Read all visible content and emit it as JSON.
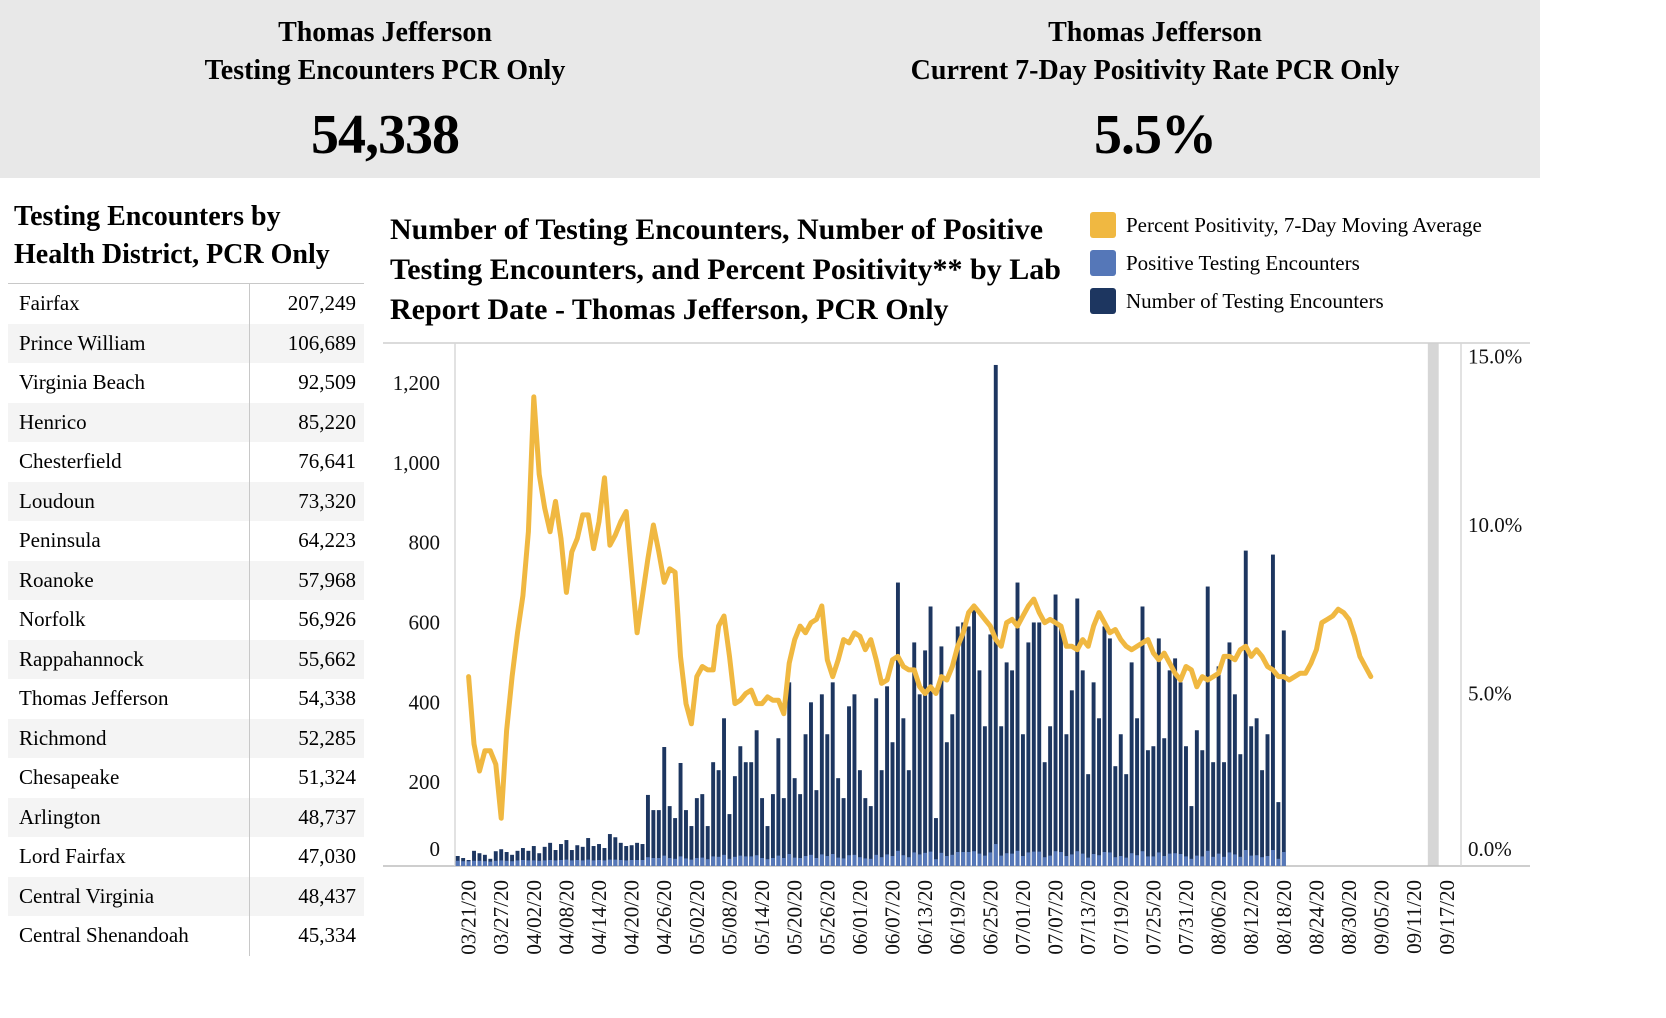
{
  "kpis": {
    "left": {
      "title_line1": "Thomas Jefferson",
      "title_line2": "Testing Encounters PCR Only",
      "value": "54,338"
    },
    "right": {
      "title_line1": "Thomas Jefferson",
      "title_line2": "Current 7-Day Positivity Rate PCR Only",
      "value": "5.5%"
    }
  },
  "district_table": {
    "heading_line1": "Testing Encounters by",
    "heading_line2": "Health District, PCR Only",
    "rows": [
      {
        "name": "Fairfax",
        "value": "207,249"
      },
      {
        "name": "Prince William",
        "value": "106,689"
      },
      {
        "name": "Virginia Beach",
        "value": "92,509"
      },
      {
        "name": "Henrico",
        "value": "85,220"
      },
      {
        "name": "Chesterfield",
        "value": "76,641"
      },
      {
        "name": "Loudoun",
        "value": "73,320"
      },
      {
        "name": "Peninsula",
        "value": "64,223"
      },
      {
        "name": "Roanoke",
        "value": "57,968"
      },
      {
        "name": "Norfolk",
        "value": "56,926"
      },
      {
        "name": "Rappahannock",
        "value": "55,662"
      },
      {
        "name": "Thomas Jefferson",
        "value": "54,338"
      },
      {
        "name": "Richmond",
        "value": "52,285"
      },
      {
        "name": "Chesapeake",
        "value": "51,324"
      },
      {
        "name": "Arlington",
        "value": "48,737"
      },
      {
        "name": "Lord Fairfax",
        "value": "47,030"
      },
      {
        "name": "Central Virginia",
        "value": "48,437"
      },
      {
        "name": "Central Shenandoah",
        "value": "45,334"
      }
    ]
  },
  "chart_title": {
    "line1": "Number of Testing Encounters, Number of Positive",
    "line2": "Testing Encounters, and Percent Positivity** by Lab",
    "line3": "Report Date - Thomas Jefferson, PCR Only"
  },
  "legend": [
    {
      "label": "Percent Positivity, 7-Day Moving Average",
      "color": "#f0b841"
    },
    {
      "label": "Positive Testing Encounters",
      "color": "#5577b8"
    },
    {
      "label": "Number of Testing Encounters",
      "color": "#1d3660"
    }
  ],
  "chart_data": {
    "type": "bar",
    "title": "Number of Testing Encounters, Number of Positive Testing Encounters, and Percent Positivity** by Lab Report Date - Thomas Jefferson, PCR Only",
    "x_start": "03/19/20",
    "x_end": "09/19/20",
    "x_ticks": [
      "03/21/20",
      "03/27/20",
      "04/02/20",
      "04/08/20",
      "04/14/20",
      "04/20/20",
      "04/26/20",
      "05/02/20",
      "05/08/20",
      "05/14/20",
      "05/20/20",
      "05/26/20",
      "06/01/20",
      "06/07/20",
      "06/13/20",
      "06/19/20",
      "06/25/20",
      "07/01/20",
      "07/07/20",
      "07/13/20",
      "07/19/20",
      "07/25/20",
      "07/31/20",
      "08/06/20",
      "08/12/20",
      "08/18/20",
      "08/24/20",
      "08/30/20",
      "09/05/20",
      "09/11/20",
      "09/17/20"
    ],
    "y_left_ticks": [
      0,
      200,
      400,
      600,
      800,
      1000,
      1200
    ],
    "y_left_tick_labels": [
      "0",
      "200",
      "400",
      "600",
      "800",
      "1,000",
      "1,200"
    ],
    "y_left_range": [
      0,
      1300
    ],
    "y_right_ticks": [
      0,
      5,
      10,
      15
    ],
    "y_right_tick_labels": [
      "0.0%",
      "5.0%",
      "10.0%",
      "15.0%"
    ],
    "y_right_range": [
      0,
      15.4
    ],
    "shaded_region": {
      "start": "09/14/20",
      "end": "09/16/20"
    },
    "series": [
      {
        "name": "Number of Testing Encounters",
        "color": "#1d3660",
        "values": [
          15,
          10,
          5,
          28,
          22,
          18,
          8,
          27,
          32,
          25,
          18,
          28,
          35,
          28,
          40,
          22,
          38,
          48,
          30,
          45,
          55,
          30,
          42,
          38,
          60,
          40,
          45,
          35,
          70,
          62,
          48,
          40,
          42,
          48,
          45,
          168,
          130,
          130,
          288,
          140,
          110,
          248,
          130,
          90,
          160,
          170,
          90,
          250,
          230,
          360,
          120,
          215,
          290,
          250,
          250,
          330,
          160,
          90,
          170,
          310,
          160,
          450,
          210,
          170,
          320,
          400,
          180,
          420,
          320,
          450,
          210,
          160,
          390,
          420,
          230,
          160,
          140,
          410,
          230,
          440,
          300,
          700,
          360,
          230,
          550,
          420,
          530,
          640,
          110,
          540,
          300,
          370,
          590,
          600,
          590,
          640,
          480,
          340,
          570,
          1245,
          340,
          500,
          480,
          700,
          320,
          550,
          600,
          600,
          250,
          340,
          670,
          590,
          320,
          430,
          660,
          480,
          220,
          450,
          360,
          590,
          560,
          240,
          320,
          220,
          500,
          360,
          640,
          280,
          290,
          560,
          310,
          480,
          510,
          450,
          290,
          140,
          330,
          280,
          690,
          250,
          490,
          250,
          550,
          420,
          270,
          780,
          340,
          360,
          230,
          320,
          770,
          150,
          580
        ],
        "start": "03/19/20"
      },
      {
        "name": "Positive Testing Encounters",
        "color": "#5577b8",
        "values": [
          3,
          2,
          2,
          3,
          3,
          2,
          1,
          3,
          4,
          3,
          2,
          4,
          5,
          4,
          4,
          3,
          4,
          5,
          4,
          5,
          6,
          4,
          5,
          4,
          6,
          4,
          5,
          4,
          6,
          6,
          5,
          4,
          5,
          5,
          5,
          12,
          10,
          10,
          16,
          10,
          8,
          14,
          9,
          6,
          10,
          11,
          7,
          14,
          13,
          18,
          8,
          13,
          16,
          14,
          14,
          17,
          10,
          7,
          10,
          16,
          10,
          20,
          11,
          10,
          15,
          18,
          10,
          19,
          15,
          20,
          11,
          9,
          17,
          18,
          12,
          9,
          8,
          18,
          12,
          19,
          15,
          28,
          17,
          12,
          24,
          19,
          23,
          26,
          7,
          23,
          15,
          18,
          25,
          25,
          25,
          27,
          21,
          16,
          24,
          45,
          16,
          22,
          21,
          28,
          15,
          24,
          26,
          26,
          12,
          16,
          27,
          25,
          15,
          19,
          27,
          21,
          11,
          20,
          17,
          25,
          24,
          12,
          15,
          11,
          22,
          17,
          27,
          14,
          14,
          24,
          15,
          21,
          22,
          20,
          14,
          8,
          16,
          14,
          28,
          13,
          21,
          13,
          24,
          19,
          13,
          30,
          16,
          17,
          12,
          15,
          30,
          8,
          25
        ],
        "start": "03/19/20"
      },
      {
        "name": "Percent Positivity, 7-Day Moving Average",
        "color": "#f0b841",
        "start": "03/21/20",
        "values": [
          5.5,
          3.5,
          2.7,
          3.3,
          3.3,
          2.9,
          1.3,
          3.9,
          5.5,
          6.8,
          7.9,
          9.8,
          13.8,
          11.5,
          10.5,
          9.8,
          10.7,
          9.6,
          8.0,
          9.2,
          9.6,
          10.3,
          10.3,
          9.3,
          10.1,
          11.4,
          9.4,
          9.7,
          10.1,
          10.4,
          8.6,
          6.8,
          7.9,
          9.0,
          10.0,
          9.2,
          8.3,
          8.7,
          8.6,
          6.1,
          4.7,
          4.1,
          5.5,
          5.8,
          5.7,
          5.7,
          7.0,
          7.3,
          6.1,
          4.7,
          4.8,
          5.0,
          5.1,
          4.7,
          4.7,
          4.9,
          4.8,
          4.8,
          4.4,
          5.9,
          6.6,
          7.0,
          6.8,
          7.1,
          7.2,
          7.6,
          6.0,
          5.5,
          6.0,
          6.6,
          6.5,
          6.8,
          6.7,
          6.3,
          6.6,
          6.0,
          5.3,
          5.4,
          6.0,
          6.1,
          5.8,
          5.7,
          5.7,
          5.2,
          5.0,
          5.2,
          5.0,
          5.5,
          5.4,
          5.8,
          6.4,
          6.8,
          7.4,
          7.6,
          7.4,
          7.2,
          7.0,
          6.6,
          6.4,
          7.1,
          7.2,
          7.0,
          7.3,
          7.6,
          7.8,
          7.4,
          7.1,
          7.2,
          7.1,
          7.0,
          6.4,
          6.4,
          6.3,
          6.6,
          6.4,
          7.0,
          7.4,
          7.1,
          6.8,
          6.9,
          6.6,
          6.4,
          6.3,
          6.4,
          6.5,
          6.6,
          6.2,
          6.0,
          6.2,
          5.9,
          5.6,
          5.4,
          5.8,
          5.7,
          5.2,
          5.5,
          5.4,
          5.5,
          5.6,
          6.1,
          6.1,
          6.0,
          6.3,
          6.4,
          6.1,
          6.3,
          6.1,
          5.8,
          5.7,
          5.5,
          5.5,
          5.4,
          5.5,
          5.6,
          5.6,
          5.9,
          6.3,
          7.1,
          7.2,
          7.3,
          7.5,
          7.4,
          7.2,
          6.7,
          6.1,
          5.8,
          5.5
        ]
      }
    ],
    "grid": false,
    "legend_position": "top-right"
  }
}
